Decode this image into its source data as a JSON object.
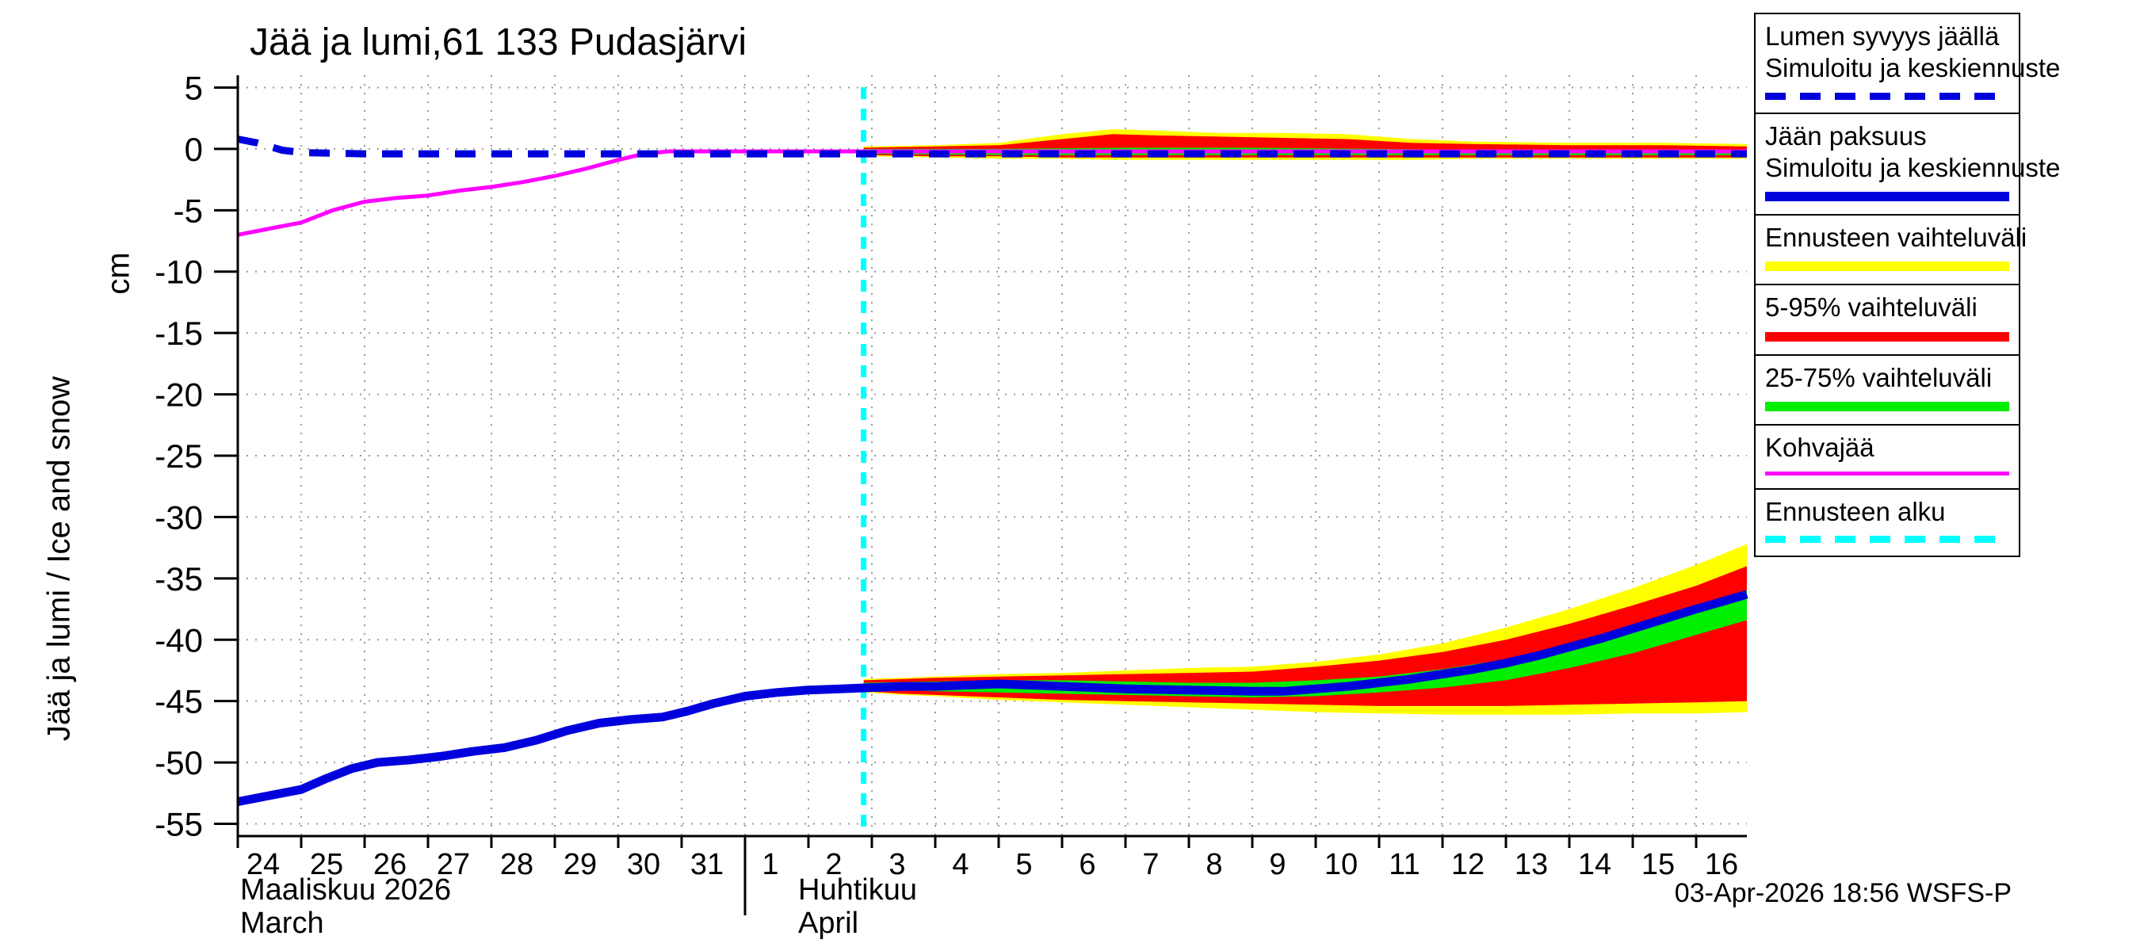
{
  "title": "Jää ja lumi,61 133 Pudasjärvi",
  "y_axis": {
    "rotated_label": "Jää ja lumi / Ice and snow",
    "unit_label": "cm",
    "ticks": [
      5,
      0,
      -5,
      -10,
      -15,
      -20,
      -25,
      -30,
      -35,
      -40,
      -45,
      -50,
      -55
    ]
  },
  "x_axis": {
    "march": {
      "title_fi": "Maaliskuu 2026",
      "title_en": "March",
      "days": [
        24,
        25,
        26,
        27,
        28,
        29,
        30,
        31
      ]
    },
    "april": {
      "title_fi": "Huhtikuu",
      "title_en": "April",
      "days": [
        1,
        2,
        3,
        4,
        5,
        6,
        7,
        8,
        9,
        10,
        11,
        12,
        13,
        14,
        15,
        16
      ]
    }
  },
  "footer": {
    "timestamp": "03-Apr-2026 18:56 WSFS-P"
  },
  "legend": [
    {
      "label_lines": [
        "Lumen syvyys jäällä",
        "Simuloitu ja keskiennuste"
      ],
      "color": "#0000dd",
      "style": "dashed",
      "height": 9
    },
    {
      "label_lines": [
        "Jään paksuus",
        "Simuloitu ja keskiennuste"
      ],
      "color": "#0000dd",
      "style": "solid",
      "height": 12
    },
    {
      "label_lines": [
        "Ennusteen vaihteluväli"
      ],
      "color": "#ffff00",
      "style": "solid",
      "height": 12
    },
    {
      "label_lines": [
        "5-95% vaihteluväli"
      ],
      "color": "#ff0000",
      "style": "solid",
      "height": 12
    },
    {
      "label_lines": [
        "25-75% vaihteluväli"
      ],
      "color": "#00ee00",
      "style": "solid",
      "height": 12
    },
    {
      "label_lines": [
        "Kohvajää"
      ],
      "color": "#ff00ff",
      "style": "solid",
      "height": 5
    },
    {
      "label_lines": [
        "Ennusteen alku"
      ],
      "color": "#00ffff",
      "style": "dashed",
      "height": 9
    }
  ],
  "chart_data": {
    "type": "line",
    "title": "Jää ja lumi,61 133 Pudasjärvi",
    "ylabel": "Jää ja lumi / Ice and snow (cm)",
    "x_description": "days since 24 March 2026 (0 = 24 Mar, 8 = 1 Apr, 23 = 16 Apr)",
    "xlim": [
      0,
      23.8
    ],
    "ylim": [
      -56,
      6
    ],
    "forecast_start_day": 9.87,
    "forecast_start_date": "03-Apr-2026",
    "grid": true,
    "colors": {
      "grid": "#999999",
      "axis": "#000000",
      "forecast_line": "#00ffff"
    },
    "bands": [
      {
        "id": "ice-forecast-range",
        "name": "Ennusteen vaihteluväli (jään paksuus)",
        "color": "#ffff00",
        "points": [
          [
            9.87,
            -43.2,
            -44.3
          ],
          [
            10.5,
            -43.1,
            -44.5
          ],
          [
            11,
            -43.0,
            -44.6
          ],
          [
            12,
            -42.8,
            -44.9
          ],
          [
            13,
            -42.7,
            -45.1
          ],
          [
            14,
            -42.5,
            -45.3
          ],
          [
            15,
            -42.3,
            -45.5
          ],
          [
            16,
            -42.2,
            -45.7
          ],
          [
            17,
            -41.8,
            -45.9
          ],
          [
            18,
            -41.2,
            -46.0
          ],
          [
            19,
            -40.3,
            -46.1
          ],
          [
            20,
            -39.0,
            -46.1
          ],
          [
            21,
            -37.5,
            -46.1
          ],
          [
            22,
            -35.8,
            -46.0
          ],
          [
            23,
            -33.9,
            -46.0
          ],
          [
            23.8,
            -32.2,
            -45.9
          ]
        ]
      },
      {
        "id": "ice-5-95-range",
        "name": "5-95% vaihteluväli (jään paksuus)",
        "color": "#ff0000",
        "points": [
          [
            9.87,
            -43.3,
            -44.2
          ],
          [
            10.5,
            -43.2,
            -44.4
          ],
          [
            11,
            -43.1,
            -44.5
          ],
          [
            12,
            -43.0,
            -44.7
          ],
          [
            13,
            -42.9,
            -44.9
          ],
          [
            14,
            -42.8,
            -45.0
          ],
          [
            15,
            -42.7,
            -45.1
          ],
          [
            16,
            -42.6,
            -45.2
          ],
          [
            17,
            -42.2,
            -45.3
          ],
          [
            18,
            -41.7,
            -45.4
          ],
          [
            19,
            -41.0,
            -45.4
          ],
          [
            20,
            -40.0,
            -45.4
          ],
          [
            21,
            -38.7,
            -45.3
          ],
          [
            22,
            -37.2,
            -45.2
          ],
          [
            23,
            -35.6,
            -45.1
          ],
          [
            23.8,
            -34.0,
            -45.0
          ]
        ]
      },
      {
        "id": "ice-25-75-range",
        "name": "25-75% vaihteluväli (jään paksuus)",
        "color": "#00ee00",
        "points": [
          [
            9.87,
            -43.5,
            -44.0
          ],
          [
            11,
            -43.4,
            -44.2
          ],
          [
            12,
            -43.3,
            -44.3
          ],
          [
            13,
            -43.3,
            -44.4
          ],
          [
            14,
            -43.4,
            -44.5
          ],
          [
            15,
            -43.5,
            -44.6
          ],
          [
            16,
            -43.5,
            -44.7
          ],
          [
            17,
            -43.3,
            -44.6
          ],
          [
            18,
            -43.0,
            -44.3
          ],
          [
            19,
            -42.4,
            -43.9
          ],
          [
            20,
            -41.6,
            -43.3
          ],
          [
            21,
            -40.4,
            -42.3
          ],
          [
            22,
            -39.0,
            -41.1
          ],
          [
            23,
            -37.5,
            -39.6
          ],
          [
            23.8,
            -36.0,
            -38.4
          ]
        ]
      },
      {
        "id": "snow-forecast-range",
        "name": "Ennusteen vaihteluväli (lumen syvyys)",
        "color": "#ffff00",
        "points": [
          [
            9.87,
            0.2,
            -0.6
          ],
          [
            11,
            0.3,
            -0.7
          ],
          [
            12,
            0.5,
            -0.8
          ],
          [
            13,
            1.2,
            -0.8
          ],
          [
            13.8,
            1.6,
            -0.9
          ],
          [
            14.5,
            1.5,
            -0.9
          ],
          [
            15.5,
            1.3,
            -0.9
          ],
          [
            16.5,
            1.3,
            -0.9
          ],
          [
            17.5,
            1.2,
            -0.9
          ],
          [
            18.5,
            0.8,
            -0.9
          ],
          [
            19.5,
            0.6,
            -0.8
          ],
          [
            21,
            0.5,
            -0.8
          ],
          [
            22.5,
            0.5,
            -0.8
          ],
          [
            23.8,
            0.4,
            -0.8
          ]
        ]
      },
      {
        "id": "snow-5-95-range",
        "name": "5-95% vaihteluväli (lumen syvyys)",
        "color": "#ff0000",
        "points": [
          [
            9.87,
            0.1,
            -0.5
          ],
          [
            11,
            0.2,
            -0.6
          ],
          [
            12,
            0.3,
            -0.6
          ],
          [
            13,
            0.8,
            -0.7
          ],
          [
            13.8,
            1.2,
            -0.7
          ],
          [
            14.5,
            1.1,
            -0.7
          ],
          [
            15.5,
            1.0,
            -0.7
          ],
          [
            16.5,
            0.9,
            -0.7
          ],
          [
            17.5,
            0.8,
            -0.7
          ],
          [
            18.5,
            0.5,
            -0.7
          ],
          [
            19.5,
            0.4,
            -0.7
          ],
          [
            21,
            0.3,
            -0.7
          ],
          [
            22.5,
            0.3,
            -0.7
          ],
          [
            23.8,
            0.2,
            -0.7
          ]
        ]
      },
      {
        "id": "snow-25-75-range",
        "name": "25-75% vaihteluväli (lumen syvyys)",
        "color": "#00ee00",
        "points": [
          [
            9.87,
            0.0,
            -0.4
          ],
          [
            12,
            0.0,
            -0.5
          ],
          [
            14,
            0.1,
            -0.5
          ],
          [
            16,
            0.1,
            -0.5
          ],
          [
            18,
            0.0,
            -0.5
          ],
          [
            20,
            -0.1,
            -0.5
          ],
          [
            22,
            -0.1,
            -0.5
          ],
          [
            23.8,
            -0.1,
            -0.5
          ]
        ]
      }
    ],
    "series": [
      {
        "id": "kohvajaa",
        "name": "Kohvajää",
        "color": "#ff00ff",
        "width": 5,
        "dash": null,
        "points": [
          [
            0,
            -7.0
          ],
          [
            0.5,
            -6.5
          ],
          [
            1,
            -6.0
          ],
          [
            1.5,
            -5.0
          ],
          [
            2,
            -4.3
          ],
          [
            2.5,
            -4.0
          ],
          [
            3,
            -3.8
          ],
          [
            3.5,
            -3.4
          ],
          [
            4,
            -3.1
          ],
          [
            4.5,
            -2.7
          ],
          [
            5,
            -2.2
          ],
          [
            5.5,
            -1.6
          ],
          [
            6,
            -0.9
          ],
          [
            6.4,
            -0.4
          ],
          [
            6.8,
            -0.2
          ],
          [
            8,
            -0.2
          ],
          [
            10,
            -0.2
          ],
          [
            12,
            -0.2
          ],
          [
            14,
            -0.2
          ],
          [
            16,
            -0.2
          ],
          [
            18,
            -0.2
          ],
          [
            20,
            -0.2
          ],
          [
            22,
            -0.2
          ],
          [
            23.8,
            -0.2
          ]
        ]
      },
      {
        "id": "snow-depth-median",
        "name": "Lumen syvyys jäällä, simuloitu ja keskiennuste",
        "color": "#0000dd",
        "width": 9,
        "dash": "26 20",
        "points": [
          [
            0,
            0.8
          ],
          [
            0.3,
            0.5
          ],
          [
            0.7,
            -0.1
          ],
          [
            1,
            -0.3
          ],
          [
            2,
            -0.4
          ],
          [
            4,
            -0.4
          ],
          [
            6,
            -0.4
          ],
          [
            8,
            -0.4
          ],
          [
            10,
            -0.4
          ],
          [
            12,
            -0.4
          ],
          [
            14,
            -0.4
          ],
          [
            16,
            -0.4
          ],
          [
            18,
            -0.4
          ],
          [
            20,
            -0.4
          ],
          [
            22,
            -0.4
          ],
          [
            23.8,
            -0.4
          ]
        ]
      },
      {
        "id": "ice-thickness-median",
        "name": "Jään paksuus, simuloitu ja keskiennuste",
        "color": "#0000dd",
        "width": 11,
        "dash": null,
        "points": [
          [
            0,
            -53.2
          ],
          [
            0.5,
            -52.7
          ],
          [
            1,
            -52.2
          ],
          [
            1.4,
            -51.3
          ],
          [
            1.8,
            -50.5
          ],
          [
            2.2,
            -50.0
          ],
          [
            2.7,
            -49.8
          ],
          [
            3.2,
            -49.5
          ],
          [
            3.7,
            -49.1
          ],
          [
            4.2,
            -48.8
          ],
          [
            4.7,
            -48.2
          ],
          [
            5.2,
            -47.4
          ],
          [
            5.7,
            -46.8
          ],
          [
            6.2,
            -46.5
          ],
          [
            6.7,
            -46.3
          ],
          [
            7.1,
            -45.8
          ],
          [
            7.5,
            -45.2
          ],
          [
            8,
            -44.6
          ],
          [
            8.5,
            -44.3
          ],
          [
            9,
            -44.1
          ],
          [
            9.5,
            -44.0
          ],
          [
            10,
            -43.9
          ],
          [
            10.5,
            -43.8
          ],
          [
            11,
            -43.8
          ],
          [
            11.5,
            -43.7
          ],
          [
            12,
            -43.6
          ],
          [
            12.5,
            -43.7
          ],
          [
            13,
            -43.8
          ],
          [
            13.5,
            -43.9
          ],
          [
            14,
            -44.0
          ],
          [
            15,
            -44.1
          ],
          [
            16,
            -44.2
          ],
          [
            16.5,
            -44.2
          ],
          [
            17,
            -44.0
          ],
          [
            17.5,
            -43.8
          ],
          [
            18,
            -43.5
          ],
          [
            18.5,
            -43.2
          ],
          [
            19,
            -42.8
          ],
          [
            19.5,
            -42.4
          ],
          [
            20,
            -41.9
          ],
          [
            20.5,
            -41.3
          ],
          [
            21,
            -40.6
          ],
          [
            21.5,
            -39.9
          ],
          [
            22,
            -39.1
          ],
          [
            22.5,
            -38.3
          ],
          [
            23,
            -37.5
          ],
          [
            23.4,
            -36.9
          ],
          [
            23.8,
            -36.3
          ]
        ]
      }
    ]
  }
}
